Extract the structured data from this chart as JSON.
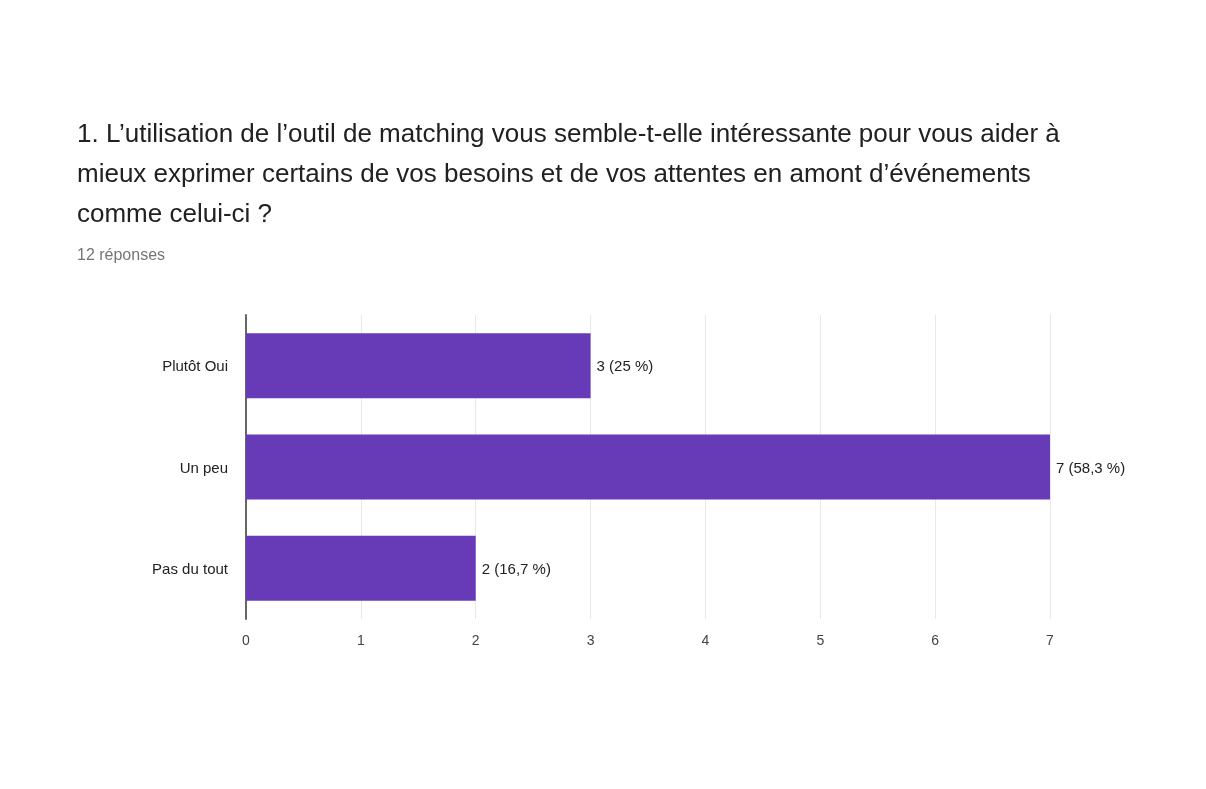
{
  "chart_data": {
    "type": "bar",
    "orientation": "horizontal",
    "title": "1. L’utilisation de l’outil de matching vous semble-t-elle intéressante pour vous aider à mieux exprimer certains de vos besoins et de vos attentes en amont d’événements comme celui-ci ?",
    "subtitle": "12 réponses",
    "categories": [
      "Plutôt Oui",
      "Un peu",
      "Pas du tout"
    ],
    "values": [
      3,
      7,
      2
    ],
    "value_labels": [
      "3 (25 %)",
      "7 (58,3 %)",
      "2 (16,7 %)"
    ],
    "color": "#673ab7",
    "xlim": [
      0,
      7
    ],
    "xticks": [
      0,
      1,
      2,
      3,
      4,
      5,
      6,
      7
    ],
    "grid": "x"
  }
}
